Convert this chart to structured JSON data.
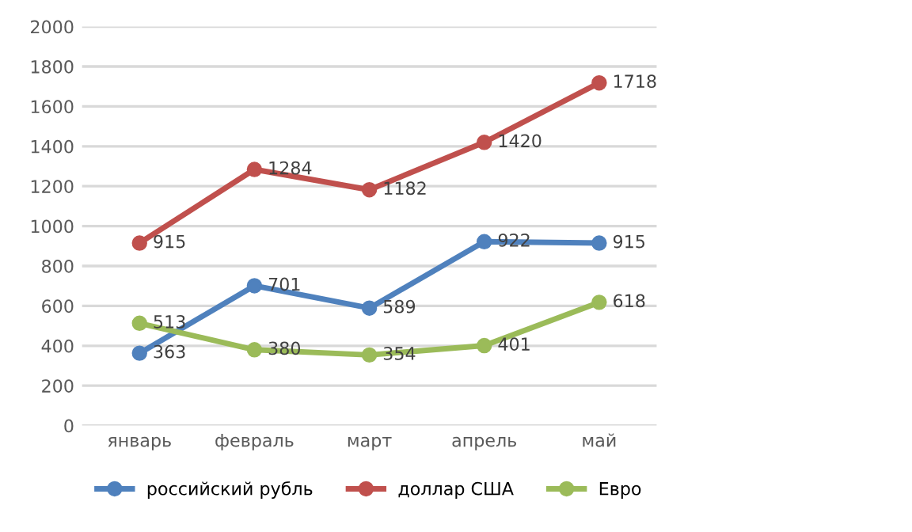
{
  "chart_data": {
    "type": "line",
    "categories": [
      "январь",
      "февраль",
      "март",
      "апрель",
      "май"
    ],
    "series": [
      {
        "name": "российский рубль",
        "color": "#4f81bd",
        "values": [
          363,
          701,
          589,
          922,
          915
        ]
      },
      {
        "name": "доллар США",
        "color": "#c0504d",
        "values": [
          915,
          1284,
          1182,
          1420,
          1718
        ]
      },
      {
        "name": "Евро",
        "color": "#9bbb59",
        "values": [
          513,
          380,
          354,
          401,
          618
        ]
      }
    ],
    "ylim": [
      0,
      2000
    ],
    "yticks": [
      0,
      200,
      400,
      600,
      800,
      1000,
      1200,
      1400,
      1600,
      1800,
      2000
    ],
    "grid": "y",
    "legend": "bottom",
    "marker": "circle",
    "line_style": "solid",
    "data_labels": true
  }
}
